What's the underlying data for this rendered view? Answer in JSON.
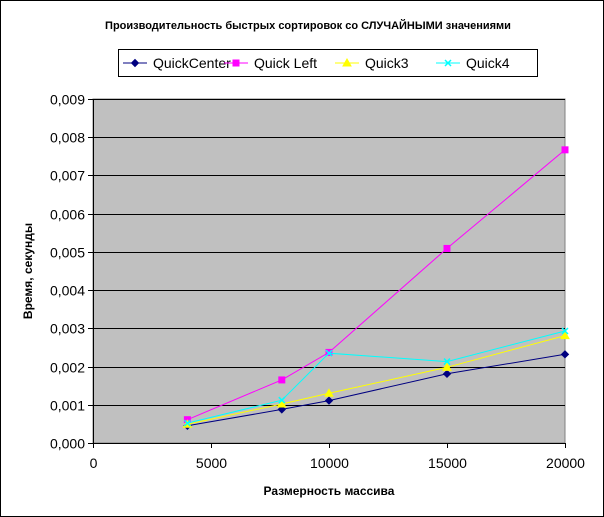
{
  "chart_data": {
    "type": "line",
    "title": "Производительность быстрых сортировок со СЛУЧАЙНЫМИ значениями",
    "xlabel": "Размерность массива",
    "ylabel": "Время, секунды",
    "xlim": [
      0,
      20000
    ],
    "ylim": [
      0,
      0.009
    ],
    "x_ticks": [
      "0",
      "5000",
      "10000",
      "15000",
      "20000"
    ],
    "y_ticks": [
      "0,000",
      "0,001",
      "0,002",
      "0,003",
      "0,004",
      "0,005",
      "0,006",
      "0,007",
      "0,008",
      "0,009"
    ],
    "x": [
      4000,
      8000,
      10000,
      15000,
      20000
    ],
    "grid": "horizontal",
    "plot_background": "#c0c0c0",
    "legend_position": "top",
    "series": [
      {
        "name": "QuickCenter",
        "color": "#000080",
        "marker": "diamond",
        "values": [
          0.00045,
          0.00088,
          0.00111,
          0.00181,
          0.00232
        ]
      },
      {
        "name": "Quick Left",
        "color": "#ff00ff",
        "marker": "square",
        "values": [
          0.00061,
          0.00165,
          0.00237,
          0.00509,
          0.00767
        ]
      },
      {
        "name": "Quick3",
        "color": "#ffff00",
        "marker": "triangle",
        "values": [
          0.00049,
          0.00102,
          0.0013,
          0.00198,
          0.00281
        ]
      },
      {
        "name": "Quick4",
        "color": "#00ffff",
        "marker": "x",
        "values": [
          0.00052,
          0.00112,
          0.00235,
          0.00213,
          0.00293
        ]
      }
    ]
  }
}
